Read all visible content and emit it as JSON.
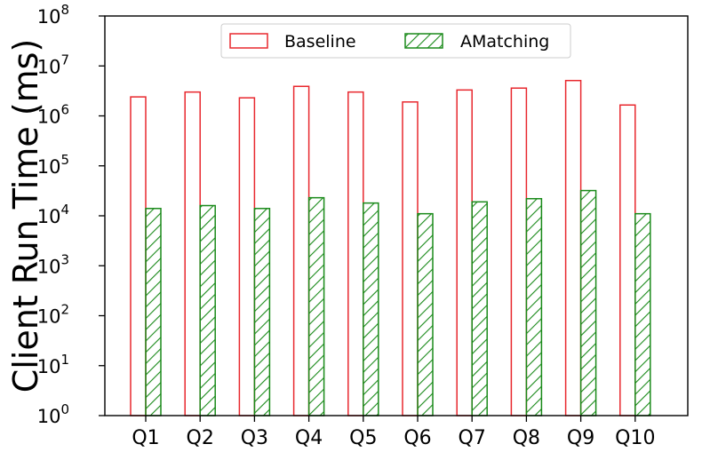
{
  "chart_data": {
    "type": "bar",
    "ylabel": "Client Run Time (ms)",
    "yscale": "log",
    "ylim": [
      1,
      100000000
    ],
    "yticks": [
      {
        "value": 1,
        "base": "10",
        "exp": "0"
      },
      {
        "value": 10,
        "base": "10",
        "exp": "1"
      },
      {
        "value": 100,
        "base": "10",
        "exp": "2"
      },
      {
        "value": 1000,
        "base": "10",
        "exp": "3"
      },
      {
        "value": 10000,
        "base": "10",
        "exp": "4"
      },
      {
        "value": 100000,
        "base": "10",
        "exp": "5"
      },
      {
        "value": 1000000,
        "base": "10",
        "exp": "6"
      },
      {
        "value": 10000000,
        "base": "10",
        "exp": "7"
      },
      {
        "value": 100000000,
        "base": "10",
        "exp": "8"
      }
    ],
    "categories": [
      "Q1",
      "Q2",
      "Q3",
      "Q4",
      "Q5",
      "Q6",
      "Q7",
      "Q8",
      "Q9",
      "Q10"
    ],
    "series": [
      {
        "name": "Baseline",
        "color": "#e8282e",
        "fill": "none",
        "values": [
          2400000,
          3000000,
          2300000,
          3900000,
          3000000,
          1900000,
          3300000,
          3600000,
          5100000,
          1650000
        ]
      },
      {
        "name": "AMatching",
        "color": "#1a8a1a",
        "fill": "hatch",
        "values": [
          14000,
          16000,
          14000,
          23000,
          18000,
          11000,
          19000,
          22000,
          32000,
          11000
        ]
      }
    ],
    "legend_position": "top-center",
    "grid": false
  }
}
